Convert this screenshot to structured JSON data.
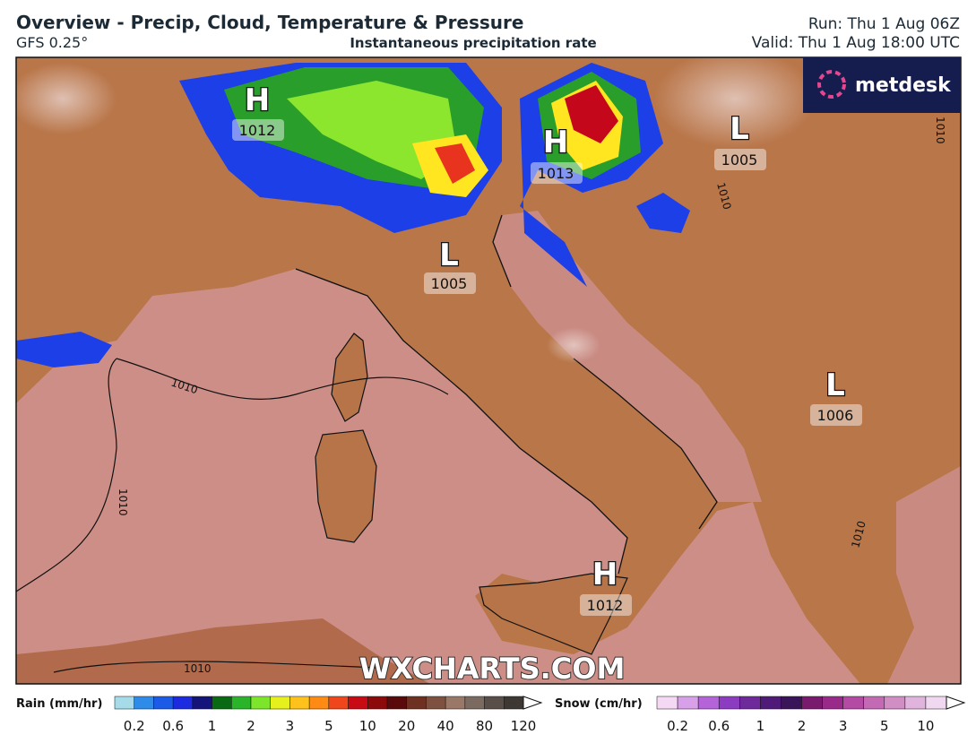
{
  "header": {
    "title": "Overview - Precip, Cloud, Temperature & Pressure",
    "model": "GFS 0.25°",
    "subtitle": "Instantaneous precipitation rate",
    "run": "Run: Thu 1 Aug 06Z",
    "valid": "Valid: Thu 1 Aug 18:00 UTC"
  },
  "logo": "metdesk",
  "pressure_centres": [
    {
      "type": "H",
      "value": "1012"
    },
    {
      "type": "H",
      "value": "1013"
    },
    {
      "type": "L",
      "value": "1005"
    },
    {
      "type": "L",
      "value": "1005"
    },
    {
      "type": "L",
      "value": "1006"
    },
    {
      "type": "H",
      "value": "1012"
    }
  ],
  "isobar_labels": [
    "1010",
    "1010",
    "1010",
    "1010",
    "1010",
    "1010"
  ],
  "watermark": "WXCHARTS.COM",
  "legend": {
    "rain": {
      "label": "Rain (mm/hr)",
      "ticks": [
        0.2,
        0.6,
        1,
        2,
        3,
        5,
        10,
        20,
        40,
        80,
        120
      ]
    },
    "snow": {
      "label": "Snow (cm/hr)",
      "ticks": [
        0.2,
        0.6,
        1,
        2,
        3,
        5,
        10
      ]
    }
  }
}
